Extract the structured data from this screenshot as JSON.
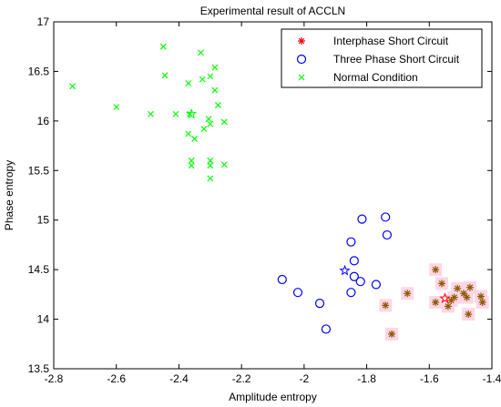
{
  "chart_data": {
    "type": "scatter",
    "title": "Experimental result of ACCLN",
    "xlabel": "Amplitude entropy",
    "ylabel": "Phase entropy",
    "xlim": [
      -2.8,
      -1.4
    ],
    "ylim": [
      13.5,
      17
    ],
    "xticks": [
      -2.8,
      -2.6,
      -2.4,
      -2.2,
      -2,
      -1.8,
      -1.6,
      -1.4
    ],
    "yticks": [
      13.5,
      14,
      14.5,
      15,
      15.5,
      16,
      16.5,
      17
    ],
    "xtick_labels": [
      "-2.8",
      "-2.6",
      "-2.4",
      "-2.2",
      "-2",
      "-1.8",
      "-1.6",
      "-1.4"
    ],
    "ytick_labels": [
      "13.5",
      "14",
      "14.5",
      "15",
      "15.5",
      "16",
      "16.5",
      "17"
    ],
    "grid": false,
    "legend_position": "top-right",
    "series": [
      {
        "name": "Interphase Short Circuit",
        "marker": "asterisk",
        "color": "#ff0000",
        "points": [
          [
            -1.74,
            14.14
          ],
          [
            -1.72,
            13.85
          ],
          [
            -1.67,
            14.26
          ],
          [
            -1.58,
            14.5
          ],
          [
            -1.58,
            14.17
          ],
          [
            -1.56,
            14.36
          ],
          [
            -1.54,
            14.13
          ],
          [
            -1.53,
            14.19
          ],
          [
            -1.52,
            14.22
          ],
          [
            -1.51,
            14.31
          ],
          [
            -1.49,
            14.26
          ],
          [
            -1.48,
            14.22
          ],
          [
            -1.47,
            14.32
          ],
          [
            -1.475,
            14.05
          ],
          [
            -1.435,
            14.23
          ],
          [
            -1.43,
            14.17
          ]
        ],
        "center": [
          -1.55,
          14.21
        ]
      },
      {
        "name": "Three Phase Short Circuit",
        "marker": "circle",
        "color": "#0000ff",
        "points": [
          [
            -2.07,
            14.4
          ],
          [
            -2.02,
            14.27
          ],
          [
            -1.95,
            14.16
          ],
          [
            -1.93,
            13.9
          ],
          [
            -1.85,
            14.78
          ],
          [
            -1.84,
            14.59
          ],
          [
            -1.84,
            14.43
          ],
          [
            -1.85,
            14.27
          ],
          [
            -1.82,
            14.38
          ],
          [
            -1.815,
            15.01
          ],
          [
            -1.77,
            14.35
          ],
          [
            -1.74,
            15.03
          ],
          [
            -1.735,
            14.85
          ]
        ],
        "center": [
          -1.87,
          14.49
        ]
      },
      {
        "name": "Normal Condition",
        "marker": "x",
        "color": "#00ff00",
        "points": [
          [
            -2.74,
            16.35
          ],
          [
            -2.6,
            16.14
          ],
          [
            -2.49,
            16.07
          ],
          [
            -2.45,
            16.75
          ],
          [
            -2.445,
            16.46
          ],
          [
            -2.41,
            16.07
          ],
          [
            -2.37,
            16.38
          ],
          [
            -2.365,
            16.07
          ],
          [
            -2.37,
            15.87
          ],
          [
            -2.36,
            15.55
          ],
          [
            -2.36,
            15.6
          ],
          [
            -2.35,
            15.82
          ],
          [
            -2.33,
            16.69
          ],
          [
            -2.325,
            16.42
          ],
          [
            -2.32,
            15.92
          ],
          [
            -2.305,
            16.02
          ],
          [
            -2.3,
            16.45
          ],
          [
            -2.3,
            15.97
          ],
          [
            -2.3,
            15.55
          ],
          [
            -2.3,
            15.6
          ],
          [
            -2.3,
            15.42
          ],
          [
            -2.285,
            16.54
          ],
          [
            -2.285,
            16.31
          ],
          [
            -2.275,
            16.16
          ],
          [
            -2.255,
            15.99
          ],
          [
            -2.255,
            15.56
          ]
        ],
        "center": [
          -2.36,
          16.07
        ]
      }
    ],
    "highlight_color": "#ffd6e6"
  }
}
